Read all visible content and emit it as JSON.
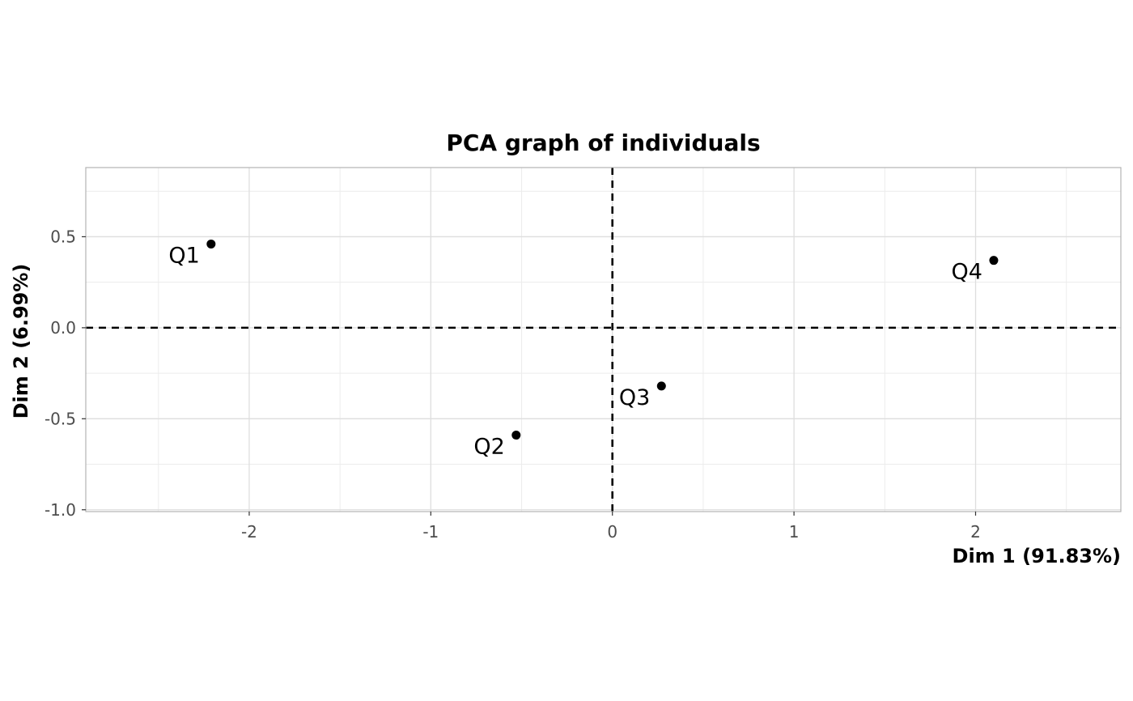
{
  "chart_data": {
    "type": "scatter",
    "title": "PCA graph of individuals",
    "xlabel": "Dim 1 (91.83%)",
    "ylabel": "Dim 2 (6.99%)",
    "xlim": [
      -2.9,
      2.8
    ],
    "ylim": [
      -1.01,
      0.88
    ],
    "x_ticks": [
      -2,
      -1,
      0,
      1,
      2
    ],
    "x_tick_labels": [
      "-2",
      "-1",
      "0",
      "1",
      "2"
    ],
    "y_ticks": [
      0.5,
      0.0,
      -0.5,
      -1.0
    ],
    "y_tick_labels": [
      "0.5",
      "0.0",
      "-0.5",
      "-1.0"
    ],
    "grid": true,
    "reference_lines": {
      "x": 0,
      "y": 0,
      "style": "dashed"
    },
    "points": [
      {
        "label": "Q1",
        "x": -2.21,
        "y": 0.46
      },
      {
        "label": "Q2",
        "x": -0.53,
        "y": -0.59
      },
      {
        "label": "Q3",
        "x": 0.27,
        "y": -0.32
      },
      {
        "label": "Q4",
        "x": 2.1,
        "y": 0.37
      }
    ],
    "colors": {
      "point": "#000000",
      "grid_major": "#dedede",
      "grid_minor": "#ececec",
      "panel_border": "#b3b3b3",
      "reference_line": "#000000"
    }
  }
}
